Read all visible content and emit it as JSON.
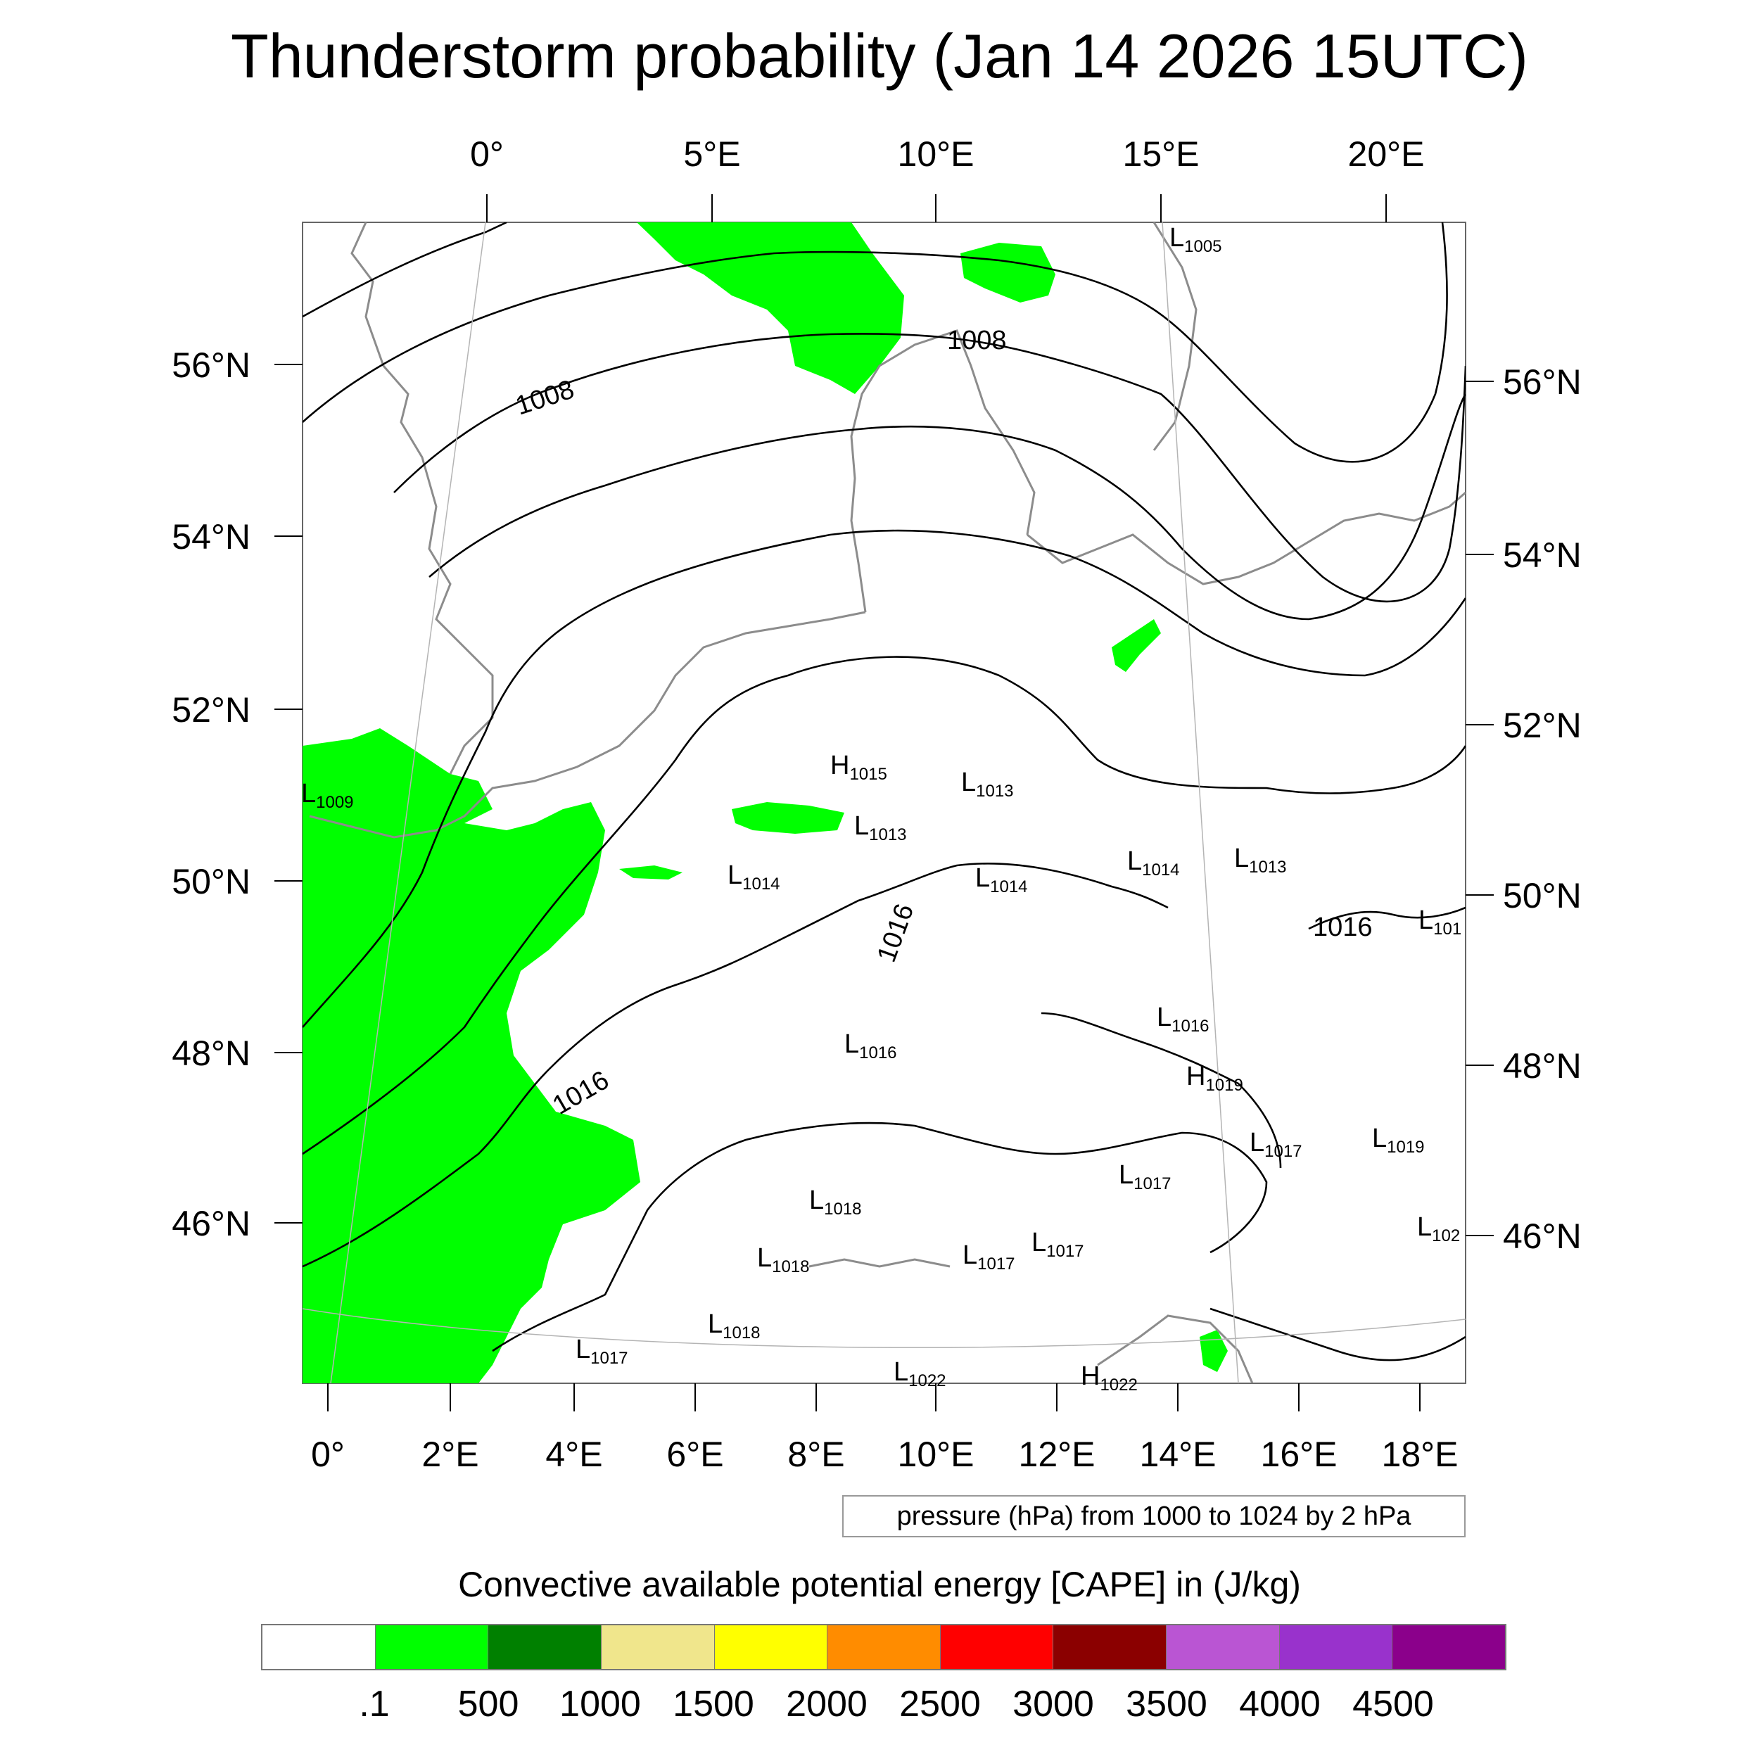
{
  "title": "Thunderstorm probability (Jan 14 2026 15UTC)",
  "top_lon_labels": [
    "0°",
    "5°E",
    "10°E",
    "15°E",
    "20°E"
  ],
  "bottom_lon_labels": [
    "0°",
    "2°E",
    "4°E",
    "6°E",
    "8°E",
    "10°E",
    "12°E",
    "14°E",
    "16°E",
    "18°E"
  ],
  "left_lat_labels": [
    "56°N",
    "54°N",
    "52°N",
    "50°N",
    "48°N",
    "46°N"
  ],
  "right_lat_labels": [
    "56°N",
    "54°N",
    "52°N",
    "50°N",
    "48°N",
    "46°N"
  ],
  "isobar_labels": [
    "1008",
    "1008",
    "1016",
    "1016",
    "1016"
  ],
  "pressure_centers": [
    {
      "type": "L",
      "value": "1005"
    },
    {
      "type": "L",
      "value": "1009"
    },
    {
      "type": "H",
      "value": "1015"
    },
    {
      "type": "L",
      "value": "1013"
    },
    {
      "type": "L",
      "value": "1013"
    },
    {
      "type": "L",
      "value": "1014"
    },
    {
      "type": "L",
      "value": "1014"
    },
    {
      "type": "L",
      "value": "1014"
    },
    {
      "type": "L",
      "value": "1013"
    },
    {
      "type": "L",
      "value": "101"
    },
    {
      "type": "L",
      "value": "1016"
    },
    {
      "type": "L",
      "value": "1016"
    },
    {
      "type": "H",
      "value": "1019"
    },
    {
      "type": "L",
      "value": "1017"
    },
    {
      "type": "L",
      "value": "1019"
    },
    {
      "type": "L",
      "value": "1018"
    },
    {
      "type": "L",
      "value": "1017"
    },
    {
      "type": "L",
      "value": "102"
    },
    {
      "type": "L",
      "value": "1018"
    },
    {
      "type": "L",
      "value": "1017"
    },
    {
      "type": "L",
      "value": "1017"
    },
    {
      "type": "L",
      "value": "1018"
    },
    {
      "type": "L",
      "value": "1017"
    },
    {
      "type": "L",
      "value": "1022"
    },
    {
      "type": "H",
      "value": "1022"
    }
  ],
  "pressure_note": "pressure (hPa) from 1000 to 1024 by 2 hPa",
  "colorbar": {
    "title": "Convective available potential energy [CAPE] in (J/kg)",
    "colors": [
      "#ffffff",
      "#00ff00",
      "#008000",
      "#f0e68c",
      "#ffff00",
      "#ff8c00",
      "#ff0000",
      "#8b0000",
      "#ba55d3",
      "#9932cc",
      "#8b008b"
    ],
    "labels": [
      ".1",
      "500",
      "1000",
      "1500",
      "2000",
      "2500",
      "3000",
      "3500",
      "4000",
      "4500"
    ]
  },
  "map_colors": {
    "cape_fill": "#00ff00",
    "coastline": "#8c8c8c",
    "isobar": "#000000",
    "gridline": "#b4b4b4"
  }
}
